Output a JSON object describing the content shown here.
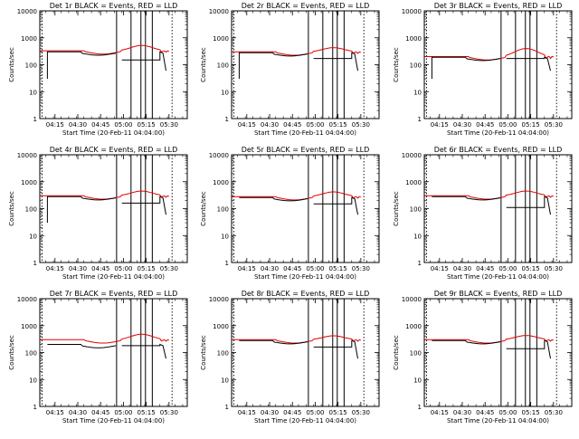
{
  "figure": {
    "xlabel": "Start Time (20-Feb-11 04:04:00)",
    "ylabel": "Counts/sec",
    "colors": {
      "events": "#000000",
      "lld": "#e00000",
      "background": "#ffffff"
    }
  },
  "chart_data": [
    {
      "type": "line",
      "title": "Det 1r BLACK = Events, RED = LLD",
      "x_ticks": [
        "04:15",
        "04:30",
        "04:45",
        "05:00",
        "05:15",
        "05:30"
      ],
      "y_ticks": [
        "1",
        "10",
        "100",
        "1000",
        "10000"
      ],
      "y_scale": "log",
      "ylim": [
        1,
        10000
      ],
      "lld_base": 330,
      "events_base": 300,
      "events_dip": 150,
      "lld_peak": 520,
      "early_dip": true
    },
    {
      "type": "line",
      "title": "Det 2r BLACK = Events, RED = LLD",
      "x_ticks": [
        "04:15",
        "04:30",
        "04:45",
        "05:00",
        "05:15",
        "05:30"
      ],
      "y_ticks": [
        "1",
        "10",
        "100",
        "1000",
        "10000"
      ],
      "y_scale": "log",
      "ylim": [
        1,
        10000
      ],
      "lld_base": 300,
      "events_base": 280,
      "events_dip": 170,
      "lld_peak": 430,
      "early_dip": true
    },
    {
      "type": "line",
      "title": "Det 3r BLACK = Events, RED = LLD",
      "x_ticks": [
        "04:15",
        "04:30",
        "04:45",
        "05:00",
        "05:15",
        "05:30"
      ],
      "y_ticks": [
        "1",
        "10",
        "100",
        "1000",
        "10000"
      ],
      "y_scale": "log",
      "ylim": [
        1,
        10000
      ],
      "lld_base": 200,
      "events_base": 190,
      "events_dip": 170,
      "lld_peak": 400,
      "early_dip": true
    },
    {
      "type": "line",
      "title": "Det 4r BLACK = Events, RED = LLD",
      "x_ticks": [
        "04:15",
        "04:30",
        "04:45",
        "05:00",
        "05:15",
        "05:30"
      ],
      "y_ticks": [
        "1",
        "10",
        "100",
        "1000",
        "10000"
      ],
      "y_scale": "log",
      "ylim": [
        1,
        10000
      ],
      "lld_base": 300,
      "events_base": 280,
      "events_dip": 160,
      "lld_peak": 450,
      "early_dip": true
    },
    {
      "type": "line",
      "title": "Det 5r BLACK = Events, RED = LLD",
      "x_ticks": [
        "04:15",
        "04:30",
        "04:45",
        "05:00",
        "05:15",
        "05:30"
      ],
      "y_ticks": [
        "1",
        "10",
        "100",
        "1000",
        "10000"
      ],
      "y_scale": "log",
      "ylim": [
        1,
        10000
      ],
      "lld_base": 280,
      "events_base": 260,
      "events_dip": 150,
      "lld_peak": 420,
      "early_dip": false
    },
    {
      "type": "line",
      "title": "Det 6r BLACK = Events, RED = LLD",
      "x_ticks": [
        "04:15",
        "04:30",
        "04:45",
        "05:00",
        "05:15",
        "05:30"
      ],
      "y_ticks": [
        "1",
        "10",
        "100",
        "1000",
        "10000"
      ],
      "y_scale": "log",
      "ylim": [
        1,
        10000
      ],
      "lld_base": 300,
      "events_base": 280,
      "events_dip": 110,
      "lld_peak": 450,
      "early_dip": false
    },
    {
      "type": "line",
      "title": "Det 7r BLACK = Events, RED = LLD",
      "x_ticks": [
        "04:15",
        "04:30",
        "04:45",
        "05:00",
        "05:15",
        "05:30"
      ],
      "y_ticks": [
        "1",
        "10",
        "100",
        "1000",
        "10000"
      ],
      "y_scale": "log",
      "ylim": [
        1,
        10000
      ],
      "lld_base": 300,
      "events_base": 200,
      "events_dip": 180,
      "lld_peak": 480,
      "early_dip": false
    },
    {
      "type": "line",
      "title": "Det 8r BLACK = Events, RED = LLD",
      "x_ticks": [
        "04:15",
        "04:30",
        "04:45",
        "05:00",
        "05:15",
        "05:30"
      ],
      "y_ticks": [
        "1",
        "10",
        "100",
        "1000",
        "10000"
      ],
      "y_scale": "log",
      "ylim": [
        1,
        10000
      ],
      "lld_base": 300,
      "events_base": 280,
      "events_dip": 160,
      "lld_peak": 420,
      "early_dip": false
    },
    {
      "type": "line",
      "title": "Det 9r BLACK = Events, RED = LLD",
      "x_ticks": [
        "04:15",
        "04:30",
        "04:45",
        "05:00",
        "05:15",
        "05:30"
      ],
      "y_ticks": [
        "1",
        "10",
        "100",
        "1000",
        "10000"
      ],
      "y_scale": "log",
      "ylim": [
        1,
        10000
      ],
      "lld_base": 300,
      "events_base": 280,
      "events_dip": 140,
      "lld_peak": 430,
      "early_dip": false
    }
  ]
}
